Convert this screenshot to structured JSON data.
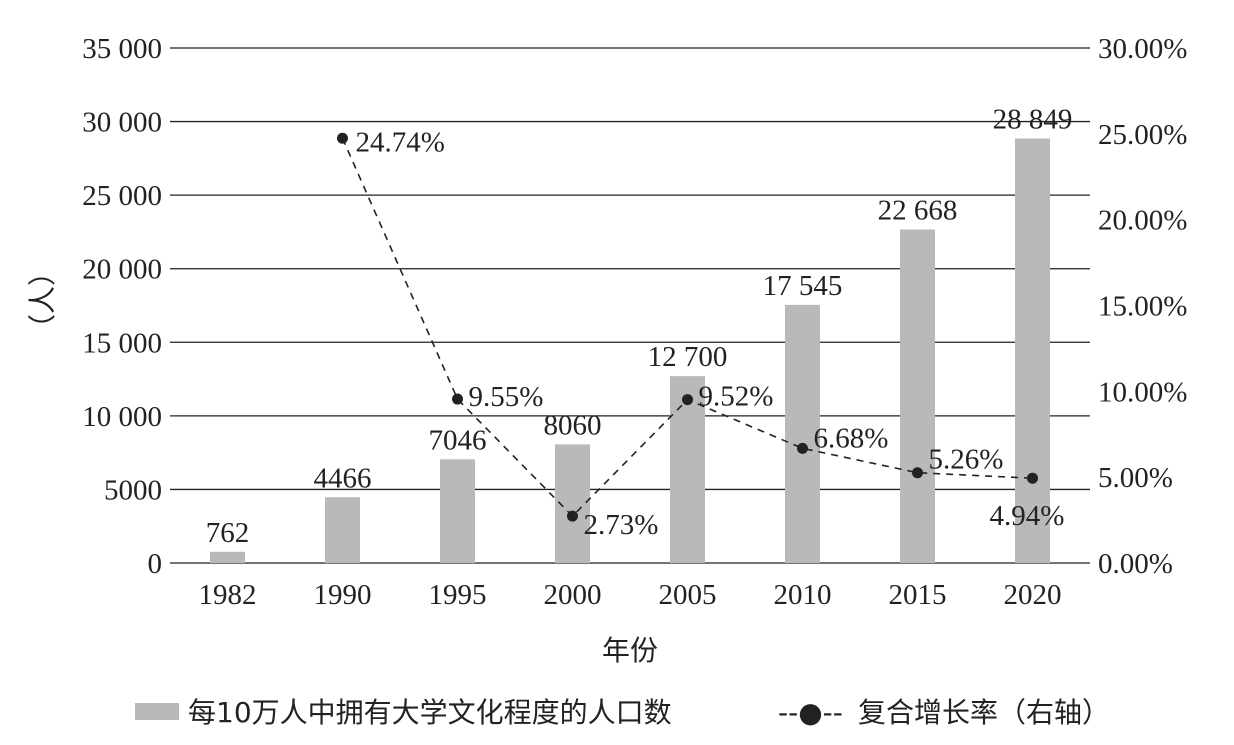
{
  "chart_data": {
    "type": "bar",
    "categories": [
      "1982",
      "1990",
      "1995",
      "2000",
      "2005",
      "2010",
      "2015",
      "2020"
    ],
    "xlabel": "年份",
    "ylabel": "（人）",
    "ylabel_right": "",
    "ylim": [
      0,
      35000
    ],
    "ylim_right": [
      0,
      0.3
    ],
    "yticks": [
      "0",
      "5000",
      "10 000",
      "15 000",
      "20 000",
      "25 000",
      "30 000",
      "35 000"
    ],
    "yticks_right": [
      "0.00%",
      "5.00%",
      "10.00%",
      "15.00%",
      "20.00%",
      "25.00%",
      "30.00%"
    ],
    "grid": true,
    "legend_position": "bottom",
    "series": [
      {
        "name": "每10万人中拥有大学文化程度的人口数",
        "type": "bar",
        "axis": "left",
        "color": "#b9b9b9",
        "values": [
          762,
          4466,
          7046,
          8060,
          12700,
          17545,
          22668,
          28849
        ],
        "labels": [
          "762",
          "4466",
          "7046",
          "8060",
          "12 700",
          "17 545",
          "22 668",
          "28 849"
        ]
      },
      {
        "name": "复合增长率（右轴）",
        "legend_marker": "--●--",
        "type": "line",
        "axis": "right",
        "style": "dashed",
        "color": "#222222",
        "values": [
          null,
          0.2474,
          0.0955,
          0.0273,
          0.0952,
          0.0668,
          0.0526,
          0.0494
        ],
        "labels": [
          null,
          "24.74%",
          "9.55%",
          "2.73%",
          "9.52%",
          "6.68%",
          "5.26%",
          "4.94%"
        ]
      }
    ]
  }
}
